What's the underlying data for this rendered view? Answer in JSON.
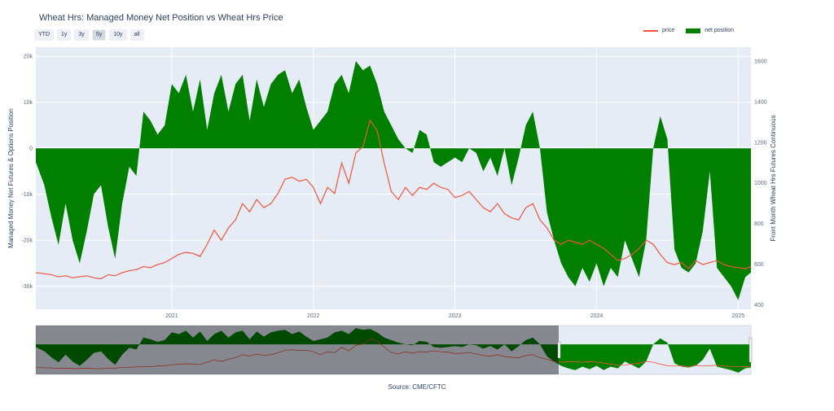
{
  "title": "Wheat Hrs: Managed Money Net Position vs Wheat Hrs Price",
  "range_buttons": [
    "YTD",
    "1y",
    "3y",
    "5y",
    "10y",
    "all"
  ],
  "active_range": "5y",
  "legend": [
    "price",
    "net position"
  ],
  "source": "Source: CME/CFTC",
  "colors": {
    "price": "#ef553b",
    "net_position": "#007f00",
    "plot_bg": "#e5ecf6"
  },
  "chart_data": {
    "type": "area",
    "ylabel_left": "Managed Money Net Futures & Options Position",
    "ylabel_right": "Front Month Wheat Hrs Futures Continuous",
    "x_ticks": [
      "2021",
      "2022",
      "2023",
      "2024",
      "2025"
    ],
    "y_left_ticks": [
      "20k",
      "10k",
      "0",
      "-10k",
      "-20k",
      "-30k"
    ],
    "y_right_ticks": [
      "1600",
      "1400",
      "1200",
      "1000",
      "800",
      "600",
      "400"
    ],
    "xlim": [
      2020.04,
      2025.09
    ],
    "ylim_left": [
      -35000,
      22000
    ],
    "ylim_right": [
      380,
      1670
    ],
    "series": [
      {
        "name": "net position",
        "x": [
          2020.04,
          2020.1,
          2020.15,
          2020.2,
          2020.25,
          2020.3,
          2020.35,
          2020.4,
          2020.45,
          2020.5,
          2020.55,
          2020.6,
          2020.65,
          2020.7,
          2020.75,
          2020.8,
          2020.85,
          2020.9,
          2020.95,
          2021.0,
          2021.05,
          2021.1,
          2021.15,
          2021.2,
          2021.25,
          2021.3,
          2021.35,
          2021.4,
          2021.45,
          2021.5,
          2021.55,
          2021.6,
          2021.65,
          2021.7,
          2021.75,
          2021.8,
          2021.85,
          2021.9,
          2021.95,
          2022.0,
          2022.05,
          2022.1,
          2022.15,
          2022.2,
          2022.25,
          2022.3,
          2022.35,
          2022.4,
          2022.45,
          2022.5,
          2022.55,
          2022.6,
          2022.65,
          2022.7,
          2022.75,
          2022.8,
          2022.85,
          2022.9,
          2022.95,
          2023.0,
          2023.05,
          2023.1,
          2023.15,
          2023.2,
          2023.25,
          2023.3,
          2023.35,
          2023.4,
          2023.45,
          2023.5,
          2023.55,
          2023.6,
          2023.65,
          2023.7,
          2023.75,
          2023.8,
          2023.85,
          2023.9,
          2023.95,
          2024.0,
          2024.05,
          2024.1,
          2024.15,
          2024.2,
          2024.25,
          2024.3,
          2024.35,
          2024.4,
          2024.45,
          2024.5,
          2024.55,
          2024.6,
          2024.65,
          2024.7,
          2024.75,
          2024.8,
          2024.85,
          2024.9,
          2024.95,
          2025.0,
          2025.05,
          2025.09
        ],
        "values": [
          -3000,
          -8000,
          -15000,
          -21000,
          -12000,
          -20000,
          -25000,
          -18000,
          -10000,
          -8000,
          -17000,
          -24000,
          -12000,
          -4000,
          -6000,
          8000,
          6000,
          3000,
          5000,
          14000,
          12000,
          16000,
          8000,
          15000,
          4000,
          12000,
          16000,
          8000,
          14000,
          16000,
          6000,
          15000,
          9000,
          14000,
          16000,
          17000,
          12000,
          15000,
          9000,
          4000,
          6000,
          8000,
          14000,
          16000,
          12000,
          19000,
          17000,
          18000,
          14000,
          8000,
          5000,
          2000,
          0,
          -1000,
          4000,
          3000,
          -3000,
          -4000,
          -3000,
          -2000,
          -3000,
          0,
          -1000,
          -5000,
          -2000,
          -6000,
          0,
          -8000,
          -2000,
          5000,
          8000,
          0,
          -14000,
          -20000,
          -25000,
          -28000,
          -30000,
          -26000,
          -29000,
          -25000,
          -30000,
          -26000,
          -28000,
          -20000,
          -24000,
          -28000,
          -20000,
          0,
          7000,
          2000,
          -22000,
          -26000,
          -27000,
          -25000,
          -18000,
          -5000,
          -26000,
          -28000,
          -30000,
          -33000,
          -28000,
          -27000
        ]
      },
      {
        "name": "price",
        "x": [
          2020.04,
          2020.1,
          2020.15,
          2020.2,
          2020.25,
          2020.3,
          2020.35,
          2020.4,
          2020.45,
          2020.5,
          2020.55,
          2020.6,
          2020.65,
          2020.7,
          2020.75,
          2020.8,
          2020.85,
          2020.9,
          2020.95,
          2021.0,
          2021.05,
          2021.1,
          2021.15,
          2021.2,
          2021.25,
          2021.3,
          2021.35,
          2021.4,
          2021.45,
          2021.5,
          2021.55,
          2021.6,
          2021.65,
          2021.7,
          2021.75,
          2021.8,
          2021.85,
          2021.9,
          2021.95,
          2022.0,
          2022.05,
          2022.1,
          2022.15,
          2022.2,
          2022.25,
          2022.3,
          2022.35,
          2022.4,
          2022.45,
          2022.5,
          2022.55,
          2022.6,
          2022.65,
          2022.7,
          2022.75,
          2022.8,
          2022.85,
          2022.9,
          2022.95,
          2023.0,
          2023.05,
          2023.1,
          2023.15,
          2023.2,
          2023.25,
          2023.3,
          2023.35,
          2023.4,
          2023.45,
          2023.5,
          2023.55,
          2023.6,
          2023.65,
          2023.7,
          2023.75,
          2023.8,
          2023.85,
          2023.9,
          2023.95,
          2024.0,
          2024.05,
          2024.1,
          2024.15,
          2024.2,
          2024.25,
          2024.3,
          2024.35,
          2024.4,
          2024.45,
          2024.5,
          2024.55,
          2024.6,
          2024.65,
          2024.7,
          2024.75,
          2024.8,
          2024.85,
          2024.9,
          2024.95,
          2025.0,
          2025.05,
          2025.09
        ],
        "values": [
          560,
          555,
          550,
          540,
          545,
          535,
          540,
          545,
          535,
          530,
          550,
          545,
          560,
          570,
          575,
          590,
          585,
          600,
          610,
          630,
          650,
          660,
          655,
          640,
          700,
          770,
          720,
          780,
          820,
          900,
          860,
          920,
          880,
          900,
          950,
          1020,
          1030,
          1010,
          1020,
          980,
          900,
          980,
          950,
          1100,
          1000,
          1150,
          1180,
          1310,
          1260,
          1100,
          960,
          920,
          980,
          940,
          980,
          970,
          1000,
          980,
          970,
          930,
          940,
          960,
          920,
          880,
          860,
          900,
          850,
          830,
          820,
          880,
          900,
          820,
          780,
          720,
          700,
          720,
          710,
          700,
          720,
          700,
          680,
          650,
          620,
          630,
          650,
          680,
          720,
          700,
          650,
          610,
          600,
          610,
          580,
          620,
          600,
          610,
          620,
          600,
          590,
          585,
          580,
          590
        ]
      }
    ]
  }
}
